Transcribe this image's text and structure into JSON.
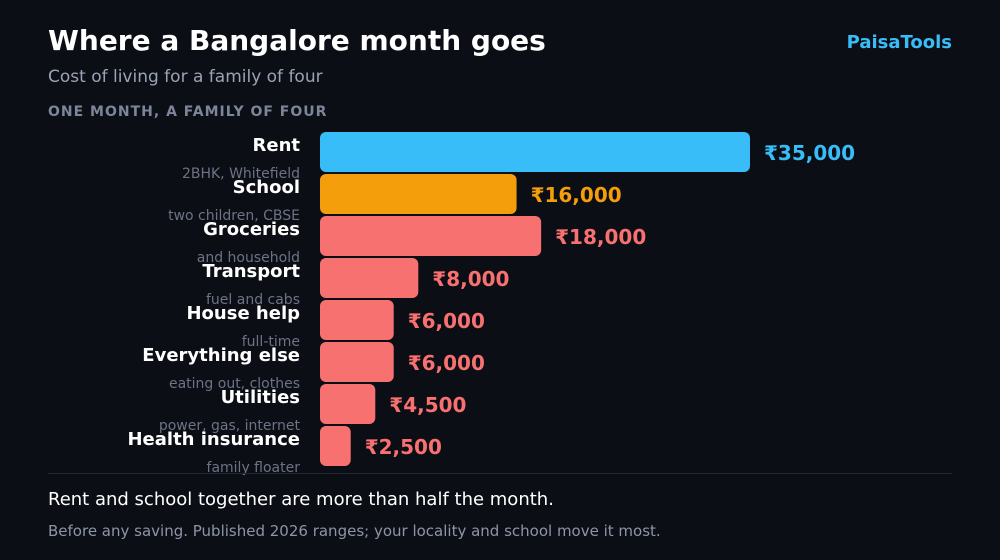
{
  "header": {
    "title": "Where a Bangalore month goes",
    "subtitle": "Cost of living for a family of four",
    "brand": "PaisaTools"
  },
  "section_label": "ONE MONTH, A FAMILY OF FOUR",
  "chart_data": {
    "type": "bar",
    "orientation": "horizontal",
    "unit": "₹ per month",
    "categories": [
      "Rent",
      "School",
      "Groceries",
      "Transport",
      "House help",
      "Everything else",
      "Utilities",
      "Health insurance"
    ],
    "notes": [
      "2BHK, Whitefield",
      "two children, CBSE",
      "and household",
      "fuel and cabs",
      "full-time",
      "eating out, clothes",
      "power, gas, internet",
      "family floater"
    ],
    "values": [
      35000,
      16000,
      18000,
      8000,
      6000,
      6000,
      4500,
      2500
    ],
    "value_labels": [
      "₹35,000",
      "₹16,000",
      "₹18,000",
      "₹8,000",
      "₹6,000",
      "₹6,000",
      "₹4,500",
      "₹2,500"
    ],
    "colors": [
      "#38bdf8",
      "#f59e0b",
      "#f87171",
      "#f87171",
      "#f87171",
      "#f87171",
      "#f87171",
      "#f87171"
    ],
    "grid": false
  },
  "footer": {
    "takeaway": "Rent and school together are more than half the month.",
    "note": "Before any saving. Published 2026 ranges; your locality and school move it most."
  }
}
